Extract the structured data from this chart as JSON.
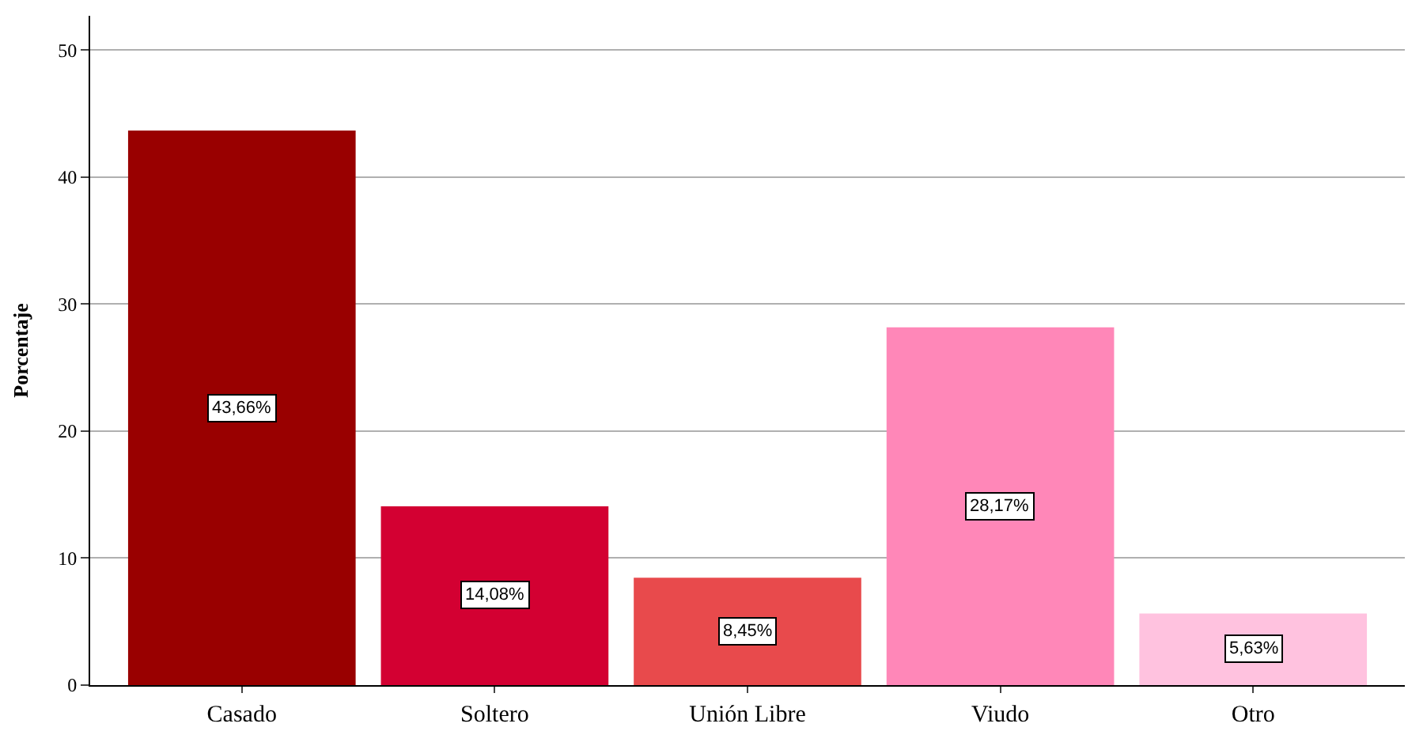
{
  "chart_data": {
    "type": "bar",
    "ylabel": "Porcentaje",
    "categories": [
      "Casado",
      "Soltero",
      "Unión Libre",
      "Viudo",
      "Otro"
    ],
    "values": [
      43.66,
      14.08,
      8.45,
      28.17,
      5.63
    ],
    "value_labels": [
      "43,66%",
      "14,08%",
      "8,45%",
      "28,17%",
      "5,63%"
    ],
    "colors": [
      "#990000",
      "#d30032",
      "#e84a4c",
      "#ff87b8",
      "#ffc2df"
    ],
    "ylim": [
      0,
      52.7
    ],
    "yticks": [
      0,
      10,
      20,
      30,
      40,
      50
    ],
    "grid": "y",
    "legend": false
  }
}
